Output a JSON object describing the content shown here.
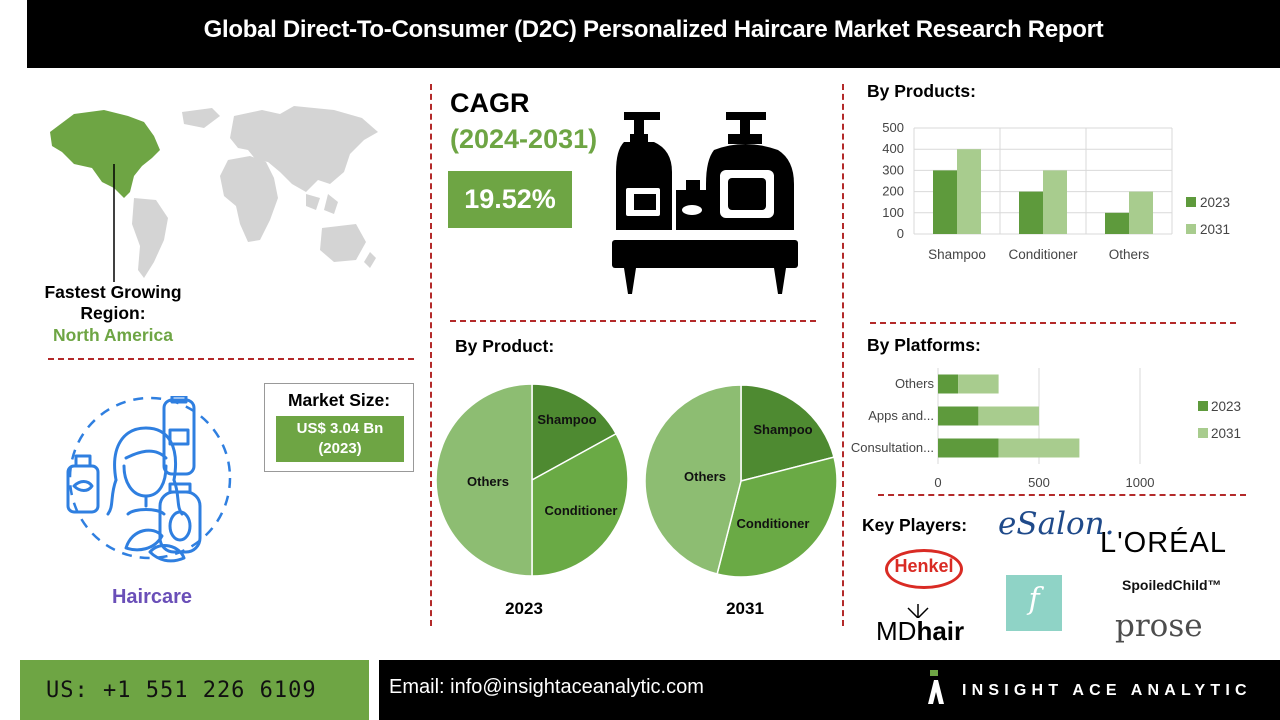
{
  "header": {
    "title": "Global Direct-To-Consumer (D2C) Personalized Haircare Market Research Report"
  },
  "region": {
    "label": "Fastest Growing Region:",
    "name": "North America",
    "icon": "world-map-icon"
  },
  "haircare": {
    "label": "Haircare",
    "icon": "haircare-icon"
  },
  "market_size": {
    "title": "Market Size:",
    "value": "US$ 3.04 Bn (2023)"
  },
  "cagr": {
    "label": "CAGR",
    "period": "(2024-2031)",
    "value": "19.52%",
    "icon": "bottles-icon"
  },
  "colors": {
    "accent_green": "#6ea544",
    "series_2023": "#5e9a3c",
    "series_2031": "#a8cc8e",
    "divider": "#b32a2a"
  },
  "chart_data": [
    {
      "id": "by-products-bar",
      "type": "bar",
      "title": "By Products:",
      "categories": [
        "Shampoo",
        "Conditioner",
        "Others"
      ],
      "series": [
        {
          "name": "2023",
          "values": [
            300,
            200,
            100
          ]
        },
        {
          "name": "2031",
          "values": [
            400,
            300,
            200
          ]
        }
      ],
      "yticks": [
        "0",
        "100",
        "200",
        "300",
        "400",
        "500"
      ],
      "ylim": [
        0,
        500
      ],
      "grid": true,
      "legend": "right"
    },
    {
      "id": "by-platforms-bar",
      "type": "bar",
      "orientation": "horizontal",
      "stacked": true,
      "title": "By Platforms:",
      "categories": [
        "Others",
        "Apps and...",
        "Consultation..."
      ],
      "series": [
        {
          "name": "2023",
          "values": [
            100,
            200,
            300
          ]
        },
        {
          "name": "2031",
          "values": [
            200,
            300,
            400
          ]
        }
      ],
      "xticks": [
        "0",
        "500",
        "1000"
      ],
      "xlim": [
        0,
        1000
      ],
      "grid": true,
      "legend": "right"
    },
    {
      "id": "by-product-pies",
      "type": "pie",
      "title": "By Product:",
      "pies": [
        {
          "year": "2023",
          "slices": [
            {
              "label": "Shampoo",
              "value": 17
            },
            {
              "label": "Conditioner",
              "value": 33
            },
            {
              "label": "Others",
              "value": 50
            }
          ]
        },
        {
          "year": "2031",
          "slices": [
            {
              "label": "Shampoo",
              "value": 21
            },
            {
              "label": "Conditioner",
              "value": 33
            },
            {
              "label": "Others",
              "value": 46
            }
          ]
        }
      ]
    }
  ],
  "key_players": {
    "title": "Key Players:",
    "logos": {
      "esalon": "eSalon.",
      "loreal": "L'ORÉAL",
      "henkel": "Henkel",
      "function": "f",
      "spoiledchild": "SpoiledChild™",
      "mdhair_md": "MD",
      "mdhair_hair": "hair",
      "prose": "prose"
    }
  },
  "footer": {
    "phone": "US: +1 551 226 6109",
    "email": "Email: info@insightaceanalytic.com",
    "brand": "INSIGHT ACE ANALYTIC"
  }
}
